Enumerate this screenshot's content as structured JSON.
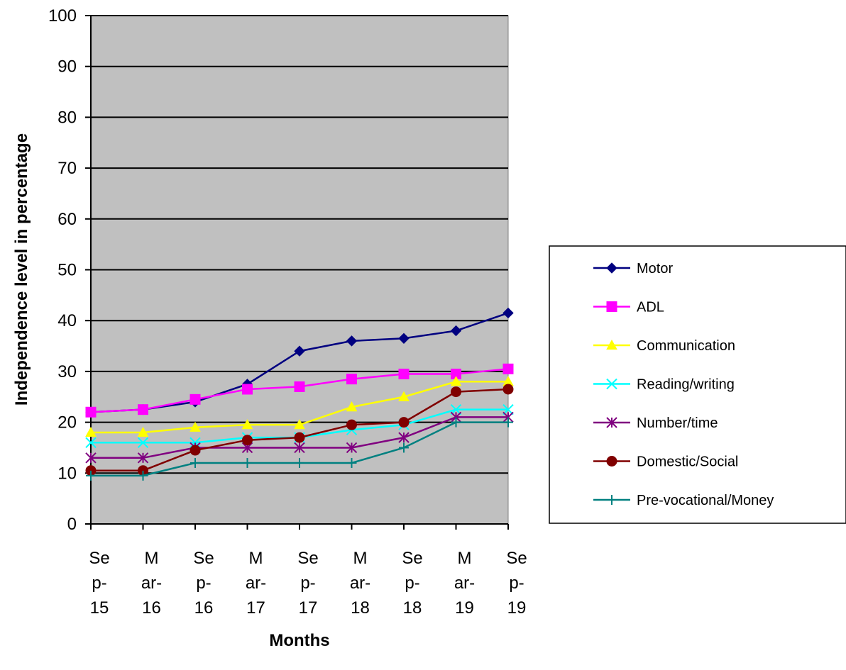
{
  "chart_data": {
    "type": "line",
    "title": "",
    "xlabel": "Months",
    "ylabel": "Independence level in percentage",
    "ylim": [
      0,
      100
    ],
    "ytick_step": 10,
    "grid": true,
    "legend_position": "right",
    "plot_background": "#c0c0c0",
    "categories": [
      "Sep-15",
      "Mar-16",
      "Sep-16",
      "Mar-17",
      "Sep-17",
      "Mar-18",
      "Sep-18",
      "Mar-19",
      "Sep-19"
    ],
    "category_label_lines": [
      [
        "Se",
        "p-",
        "15"
      ],
      [
        "M",
        "ar-",
        "16"
      ],
      [
        "Se",
        "p-",
        "16"
      ],
      [
        "M",
        "ar-",
        "17"
      ],
      [
        "Se",
        "p-",
        "17"
      ],
      [
        "M",
        "ar-",
        "18"
      ],
      [
        "Se",
        "p-",
        "18"
      ],
      [
        "M",
        "ar-",
        "19"
      ],
      [
        "Se",
        "p-",
        "19"
      ]
    ],
    "series": [
      {
        "name": "Motor",
        "color": "#000080",
        "marker": "diamond",
        "values": [
          22,
          22.5,
          24,
          27.5,
          34,
          36,
          36.5,
          38,
          41.5
        ]
      },
      {
        "name": "ADL",
        "color": "#ff00ff",
        "marker": "square",
        "values": [
          22,
          22.5,
          24.5,
          26.5,
          27,
          28.5,
          29.5,
          29.5,
          30.5
        ]
      },
      {
        "name": "Communication",
        "color": "#ffff00",
        "marker": "triangle",
        "values": [
          18,
          18,
          19,
          19.5,
          19.5,
          23,
          25,
          28,
          28
        ]
      },
      {
        "name": "Reading/writing",
        "color": "#00ffff",
        "marker": "x",
        "values": [
          16,
          16,
          16,
          17,
          17,
          18.5,
          19.5,
          22.5,
          22.5
        ]
      },
      {
        "name": "Number/time",
        "color": "#800080",
        "marker": "star",
        "values": [
          13,
          13,
          15,
          15,
          15,
          15,
          17,
          21,
          21
        ]
      },
      {
        "name": "Domestic/Social",
        "color": "#800000",
        "marker": "circle",
        "values": [
          10.5,
          10.5,
          14.5,
          16.5,
          17,
          19.5,
          20,
          26,
          26.5
        ]
      },
      {
        "name": "Pre-vocational/Money",
        "color": "#008080",
        "marker": "plus",
        "values": [
          9.5,
          9.5,
          12,
          12,
          12,
          12,
          15,
          20,
          20
        ]
      }
    ]
  }
}
